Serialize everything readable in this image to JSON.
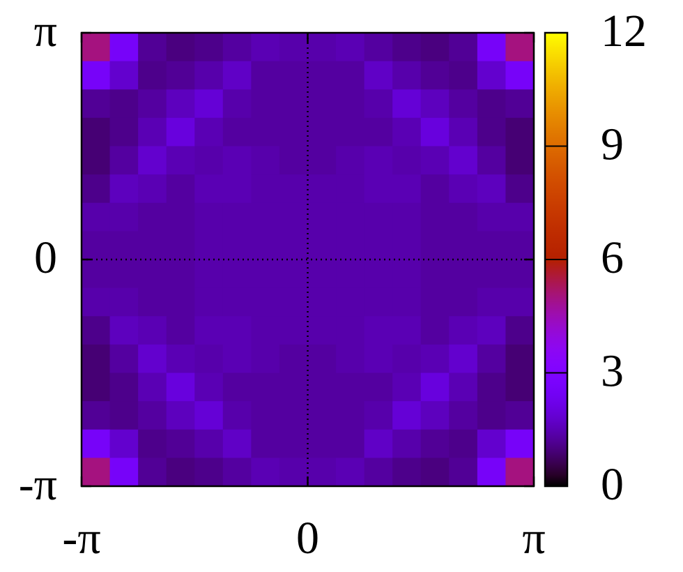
{
  "chart_data": {
    "type": "heatmap",
    "xlim": [
      -3.14159,
      3.14159
    ],
    "ylim": [
      -3.14159,
      3.14159
    ],
    "xticks": [
      {
        "value": -3.14159,
        "label": "-π"
      },
      0,
      {
        "value": 3.14159,
        "label": "π"
      }
    ],
    "yticks": [
      {
        "value": -3.14159,
        "label": "-π"
      },
      0,
      {
        "value": 3.14159,
        "label": "π"
      }
    ],
    "zlim": [
      0,
      12
    ],
    "zticks": [
      0,
      3,
      6,
      9,
      12
    ],
    "palette": "gnuplot",
    "zero_axes": true,
    "z": [
      [
        5.0,
        2.6,
        1.2,
        1.0,
        1.1,
        1.3,
        1.5,
        1.4,
        1.4,
        1.5,
        1.3,
        1.1,
        1.0,
        1.2,
        2.6,
        5.0
      ],
      [
        2.6,
        1.8,
        1.1,
        1.2,
        1.4,
        1.7,
        1.3,
        1.3,
        1.3,
        1.3,
        1.7,
        1.4,
        1.2,
        1.1,
        1.8,
        2.6
      ],
      [
        1.2,
        1.1,
        1.3,
        1.6,
        1.9,
        1.4,
        1.3,
        1.3,
        1.3,
        1.3,
        1.4,
        1.9,
        1.6,
        1.3,
        1.1,
        1.2
      ],
      [
        0.9,
        1.1,
        1.5,
        2.0,
        1.5,
        1.3,
        1.3,
        1.3,
        1.3,
        1.3,
        1.3,
        1.5,
        2.0,
        1.5,
        1.1,
        0.9
      ],
      [
        0.9,
        1.3,
        1.8,
        1.5,
        1.4,
        1.5,
        1.4,
        1.3,
        1.3,
        1.4,
        1.5,
        1.4,
        1.5,
        1.8,
        1.3,
        0.9
      ],
      [
        1.1,
        1.6,
        1.5,
        1.3,
        1.5,
        1.5,
        1.4,
        1.4,
        1.4,
        1.4,
        1.5,
        1.5,
        1.3,
        1.5,
        1.6,
        1.1
      ],
      [
        1.4,
        1.4,
        1.3,
        1.3,
        1.4,
        1.4,
        1.4,
        1.4,
        1.4,
        1.4,
        1.4,
        1.4,
        1.3,
        1.3,
        1.4,
        1.4
      ],
      [
        1.3,
        1.3,
        1.3,
        1.3,
        1.4,
        1.4,
        1.4,
        1.4,
        1.4,
        1.4,
        1.4,
        1.4,
        1.3,
        1.3,
        1.3,
        1.3
      ],
      [
        1.3,
        1.3,
        1.3,
        1.3,
        1.4,
        1.4,
        1.4,
        1.4,
        1.4,
        1.4,
        1.4,
        1.4,
        1.3,
        1.3,
        1.3,
        1.3
      ],
      [
        1.4,
        1.4,
        1.3,
        1.3,
        1.4,
        1.4,
        1.4,
        1.4,
        1.4,
        1.4,
        1.4,
        1.4,
        1.3,
        1.3,
        1.4,
        1.4
      ],
      [
        1.1,
        1.6,
        1.5,
        1.3,
        1.5,
        1.5,
        1.4,
        1.4,
        1.4,
        1.4,
        1.5,
        1.5,
        1.3,
        1.5,
        1.6,
        1.1
      ],
      [
        0.9,
        1.3,
        1.8,
        1.5,
        1.4,
        1.5,
        1.4,
        1.3,
        1.3,
        1.4,
        1.5,
        1.4,
        1.5,
        1.8,
        1.3,
        0.9
      ],
      [
        0.9,
        1.1,
        1.5,
        2.0,
        1.5,
        1.3,
        1.3,
        1.3,
        1.3,
        1.3,
        1.3,
        1.5,
        2.0,
        1.5,
        1.1,
        0.9
      ],
      [
        1.2,
        1.1,
        1.3,
        1.6,
        1.9,
        1.4,
        1.3,
        1.3,
        1.3,
        1.3,
        1.4,
        1.9,
        1.6,
        1.3,
        1.1,
        1.2
      ],
      [
        2.6,
        1.8,
        1.1,
        1.2,
        1.4,
        1.7,
        1.3,
        1.3,
        1.3,
        1.3,
        1.7,
        1.4,
        1.2,
        1.1,
        1.8,
        2.6
      ],
      [
        5.0,
        2.6,
        1.2,
        1.0,
        1.1,
        1.3,
        1.5,
        1.4,
        1.4,
        1.5,
        1.3,
        1.1,
        1.0,
        1.2,
        2.6,
        5.0
      ]
    ]
  }
}
